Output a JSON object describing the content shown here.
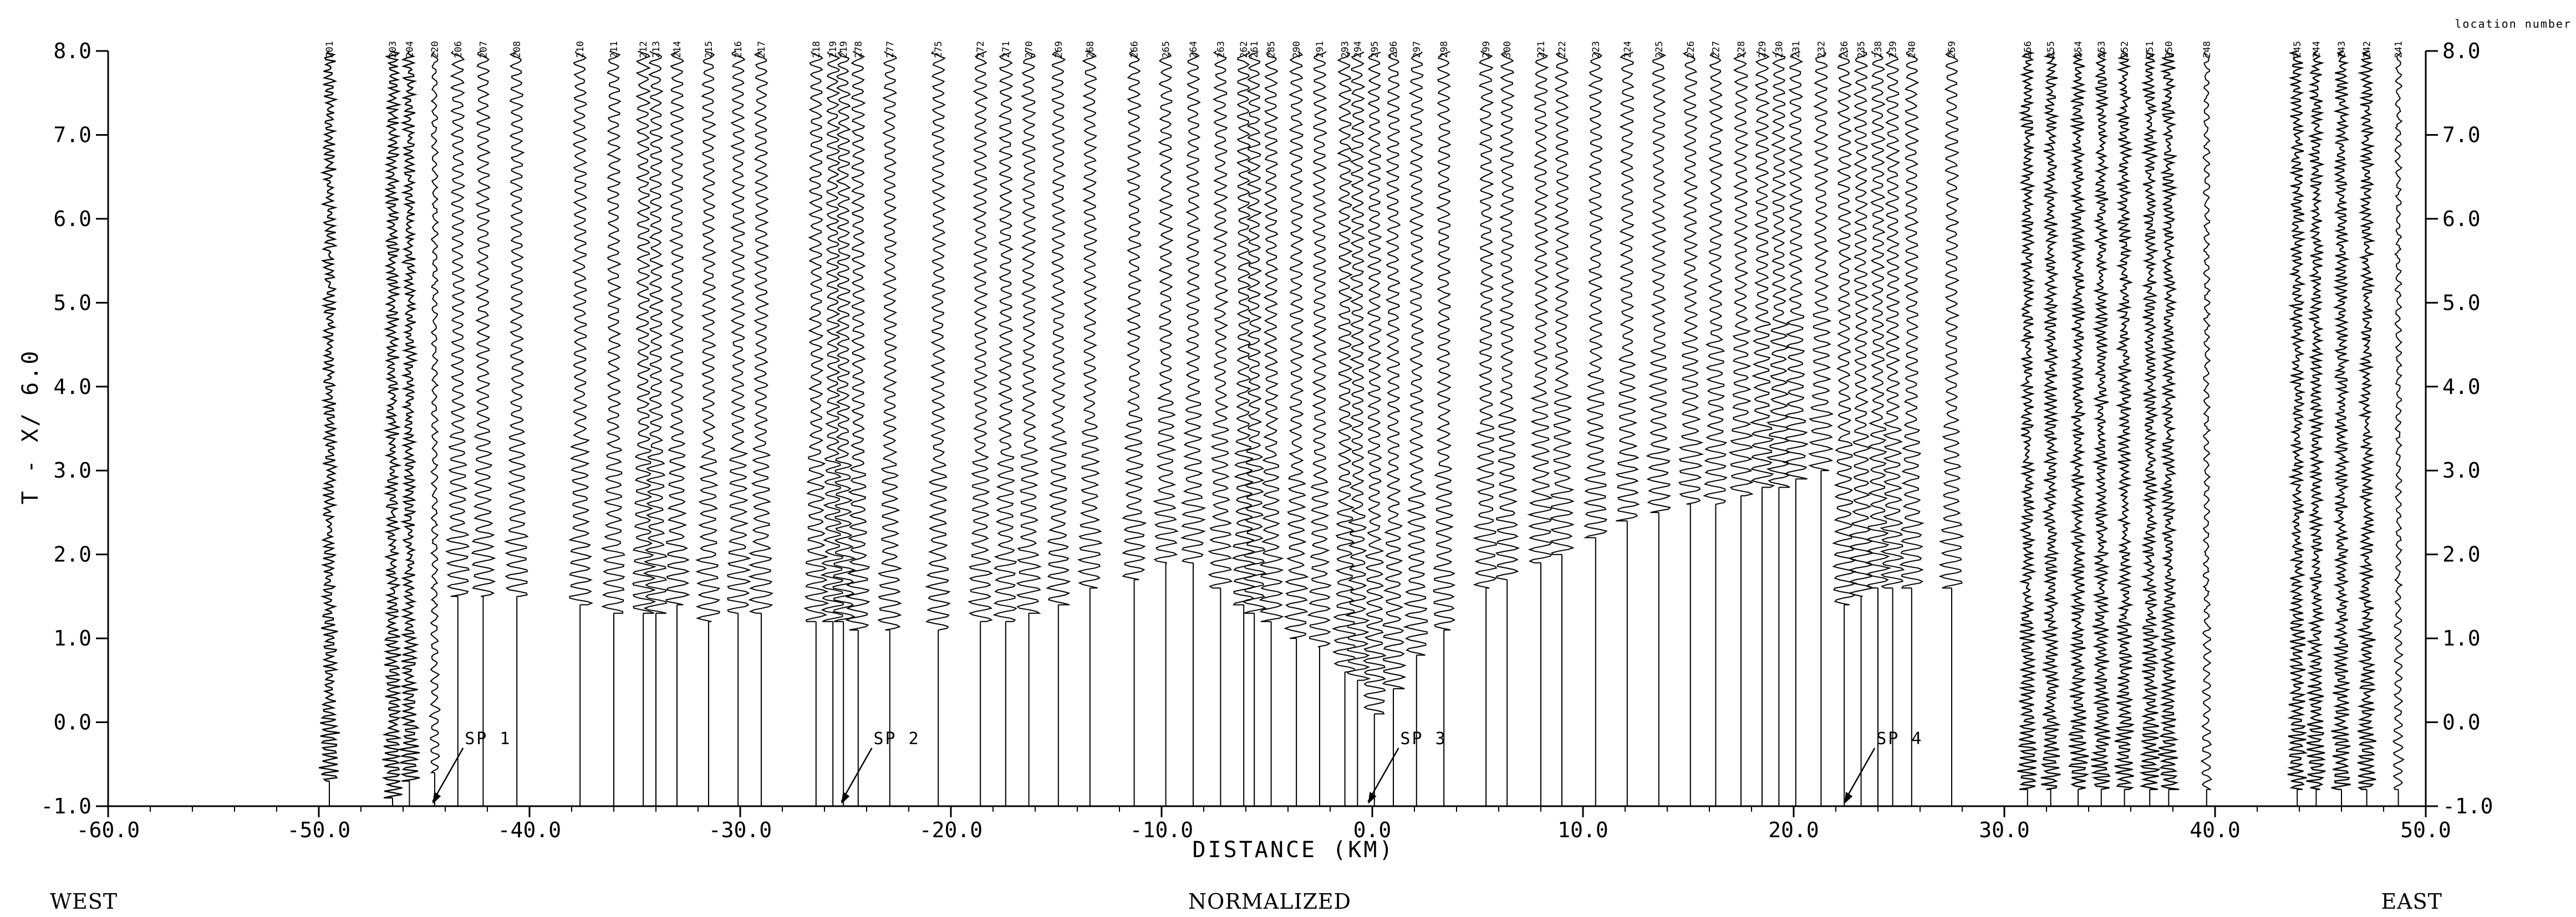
{
  "chart_data": {
    "type": "seismic record section",
    "ylabel": "T - X/ 6.0",
    "xlabel": "DISTANCE (KM)",
    "xlim": [
      -60.0,
      50.0
    ],
    "ylim": [
      -1.0,
      8.0
    ],
    "x_ticks": [
      "-60.0",
      "-50.0",
      "-40.0",
      "-30.0",
      "-20.0",
      "-10.0",
      "0.0",
      "10.0",
      "20.0",
      "30.0",
      "40.0",
      "50.0"
    ],
    "y_ticks": [
      "-1.0",
      "0.0",
      "1.0",
      "2.0",
      "3.0",
      "4.0",
      "5.0",
      "6.0",
      "7.0",
      "8.0"
    ],
    "right_axis_note": "location number",
    "bottom_labels": {
      "left": "WEST",
      "center": "NORMALIZED",
      "right": "EAST"
    },
    "shot_points": [
      {
        "label": "SP 1",
        "x": -44.6
      },
      {
        "label": "SP 2",
        "x": -25.2
      },
      {
        "label": "SP 3",
        "x": -0.2
      },
      {
        "label": "SP 4",
        "x": 22.4
      }
    ],
    "traces": [
      {
        "id": "201",
        "x": -49.5,
        "t_start": -0.7,
        "style": "noisy"
      },
      {
        "id": "203",
        "x": -46.5,
        "t_start": -0.9,
        "style": "noisy"
      },
      {
        "id": "204",
        "x": -45.7,
        "t_start": -0.7,
        "style": "noisy"
      },
      {
        "id": "220",
        "x": -44.5,
        "t_start": -0.6,
        "style": "quiet"
      },
      {
        "id": "206",
        "x": -43.4,
        "t_start": 1.5,
        "style": "normal"
      },
      {
        "id": "207",
        "x": -42.2,
        "t_start": 1.5,
        "style": "normal"
      },
      {
        "id": "208",
        "x": -40.6,
        "t_start": 1.5,
        "style": "normal"
      },
      {
        "id": "210",
        "x": -37.6,
        "t_start": 1.4,
        "style": "normal"
      },
      {
        "id": "211",
        "x": -36.0,
        "t_start": 1.3,
        "style": "normal"
      },
      {
        "id": "212",
        "x": -34.6,
        "t_start": 1.3,
        "style": "normal"
      },
      {
        "id": "213",
        "x": -34.0,
        "t_start": 1.3,
        "style": "normal"
      },
      {
        "id": "214",
        "x": -33.0,
        "t_start": 1.4,
        "style": "normal"
      },
      {
        "id": "215",
        "x": -31.5,
        "t_start": 1.2,
        "style": "normal"
      },
      {
        "id": "216",
        "x": -30.1,
        "t_start": 1.3,
        "style": "normal"
      },
      {
        "id": "217",
        "x": -29.0,
        "t_start": 1.3,
        "style": "normal"
      },
      {
        "id": "218",
        "x": -26.4,
        "t_start": 1.2,
        "style": "normal"
      },
      {
        "id": "219",
        "x": -25.6,
        "t_start": 1.2,
        "style": "normal"
      },
      {
        "id": "219",
        "x": -25.1,
        "t_start": 1.2,
        "style": "normal"
      },
      {
        "id": "278",
        "x": -24.4,
        "t_start": 1.1,
        "style": "normal"
      },
      {
        "id": "277",
        "x": -22.9,
        "t_start": 1.1,
        "style": "normal"
      },
      {
        "id": "275",
        "x": -20.6,
        "t_start": 1.1,
        "style": "normal"
      },
      {
        "id": "272",
        "x": -18.6,
        "t_start": 1.2,
        "style": "normal"
      },
      {
        "id": "271",
        "x": -17.4,
        "t_start": 1.2,
        "style": "normal"
      },
      {
        "id": "270",
        "x": -16.3,
        "t_start": 1.3,
        "style": "normal"
      },
      {
        "id": "269",
        "x": -14.9,
        "t_start": 1.4,
        "style": "normal"
      },
      {
        "id": "268",
        "x": -13.4,
        "t_start": 1.6,
        "style": "normal"
      },
      {
        "id": "266",
        "x": -11.3,
        "t_start": 1.7,
        "style": "normal"
      },
      {
        "id": "265",
        "x": -9.8,
        "t_start": 1.9,
        "style": "normal"
      },
      {
        "id": "264",
        "x": -8.5,
        "t_start": 1.9,
        "style": "normal"
      },
      {
        "id": "263",
        "x": -7.2,
        "t_start": 1.6,
        "style": "normal"
      },
      {
        "id": "262",
        "x": -6.1,
        "t_start": 1.4,
        "style": "normal"
      },
      {
        "id": "261",
        "x": -5.6,
        "t_start": 1.3,
        "style": "normal"
      },
      {
        "id": "285",
        "x": -4.8,
        "t_start": 1.2,
        "style": "normal"
      },
      {
        "id": "290",
        "x": -3.6,
        "t_start": 1.0,
        "style": "normal"
      },
      {
        "id": "291",
        "x": -2.5,
        "t_start": 0.9,
        "style": "normal"
      },
      {
        "id": "293",
        "x": -1.3,
        "t_start": 0.6,
        "style": "normal"
      },
      {
        "id": "294",
        "x": -0.7,
        "t_start": 0.5,
        "style": "normal"
      },
      {
        "id": "295",
        "x": 0.1,
        "t_start": 0.1,
        "style": "normal"
      },
      {
        "id": "296",
        "x": 1.0,
        "t_start": 0.4,
        "style": "normal"
      },
      {
        "id": "297",
        "x": 2.1,
        "t_start": 0.8,
        "style": "normal"
      },
      {
        "id": "298",
        "x": 3.4,
        "t_start": 1.1,
        "style": "normal"
      },
      {
        "id": "299",
        "x": 5.4,
        "t_start": 1.6,
        "style": "normal"
      },
      {
        "id": "300",
        "x": 6.4,
        "t_start": 1.7,
        "style": "normal"
      },
      {
        "id": "221",
        "x": 8.0,
        "t_start": 1.9,
        "style": "normal"
      },
      {
        "id": "222",
        "x": 9.0,
        "t_start": 2.0,
        "style": "normal"
      },
      {
        "id": "223",
        "x": 10.6,
        "t_start": 2.2,
        "style": "normal"
      },
      {
        "id": "224",
        "x": 12.1,
        "t_start": 2.4,
        "style": "normal"
      },
      {
        "id": "225",
        "x": 13.6,
        "t_start": 2.5,
        "style": "normal"
      },
      {
        "id": "226",
        "x": 15.1,
        "t_start": 2.6,
        "style": "normal"
      },
      {
        "id": "227",
        "x": 16.3,
        "t_start": 2.6,
        "style": "normal"
      },
      {
        "id": "228",
        "x": 17.5,
        "t_start": 2.7,
        "style": "normal"
      },
      {
        "id": "229",
        "x": 18.5,
        "t_start": 2.8,
        "style": "normal"
      },
      {
        "id": "230",
        "x": 19.3,
        "t_start": 2.8,
        "style": "normal"
      },
      {
        "id": "231",
        "x": 20.1,
        "t_start": 2.9,
        "style": "normal"
      },
      {
        "id": "232",
        "x": 21.3,
        "t_start": 3.0,
        "style": "normal"
      },
      {
        "id": "236",
        "x": 22.4,
        "t_start": 1.4,
        "style": "normal"
      },
      {
        "id": "235",
        "x": 23.2,
        "t_start": 1.5,
        "style": "normal"
      },
      {
        "id": "238",
        "x": 24.0,
        "t_start": 1.6,
        "style": "normal"
      },
      {
        "id": "239",
        "x": 24.7,
        "t_start": 1.6,
        "style": "normal"
      },
      {
        "id": "240",
        "x": 25.6,
        "t_start": 1.6,
        "style": "normal"
      },
      {
        "id": "259",
        "x": 27.5,
        "t_start": 1.6,
        "style": "normal"
      },
      {
        "id": "256",
        "x": 31.1,
        "t_start": -0.8,
        "style": "noisy"
      },
      {
        "id": "255",
        "x": 32.2,
        "t_start": -0.8,
        "style": "noisy"
      },
      {
        "id": "254",
        "x": 33.5,
        "t_start": -0.8,
        "style": "noisy"
      },
      {
        "id": "253",
        "x": 34.6,
        "t_start": -0.8,
        "style": "noisy"
      },
      {
        "id": "252",
        "x": 35.7,
        "t_start": -0.8,
        "style": "noisy"
      },
      {
        "id": "251",
        "x": 36.9,
        "t_start": -0.8,
        "style": "noisy"
      },
      {
        "id": "250",
        "x": 37.8,
        "t_start": -0.8,
        "style": "noisy"
      },
      {
        "id": "248",
        "x": 39.6,
        "t_start": -0.8,
        "style": "quiet"
      },
      {
        "id": "245",
        "x": 43.9,
        "t_start": -0.8,
        "style": "noisy"
      },
      {
        "id": "244",
        "x": 44.8,
        "t_start": -0.8,
        "style": "noisy"
      },
      {
        "id": "243",
        "x": 46.0,
        "t_start": -0.8,
        "style": "noisy"
      },
      {
        "id": "242",
        "x": 47.2,
        "t_start": -0.8,
        "style": "noisy"
      },
      {
        "id": "241",
        "x": 48.7,
        "t_start": -0.8,
        "style": "quiet"
      }
    ]
  }
}
